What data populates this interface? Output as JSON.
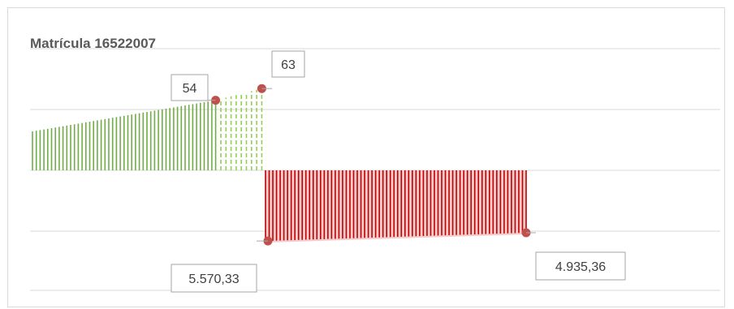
{
  "chart_data": {
    "type": "bar",
    "title": "Matrícula 16522007",
    "series": [
      {
        "kind": "positive-history",
        "color": "#70ad47",
        "style": "solid",
        "values": [
          30,
          30.5,
          31,
          31.5,
          32,
          32.5,
          33,
          33.5,
          34,
          34.5,
          35,
          35.5,
          36,
          36.5,
          37,
          37.5,
          38,
          38.5,
          39,
          39.5,
          40,
          40.5,
          41,
          41.5,
          42,
          42.5,
          43,
          43.5,
          44,
          44.5,
          45,
          45.5,
          46,
          46.5,
          47,
          47.5,
          48,
          48.5,
          49,
          49.5,
          50,
          50.5,
          51,
          51.5,
          52,
          52.5,
          53,
          53.5,
          54
        ]
      },
      {
        "kind": "positive-projection",
        "color": "#92d050",
        "style": "dashed",
        "values": [
          55,
          56,
          57,
          58,
          59,
          60,
          61,
          62,
          63
        ]
      },
      {
        "kind": "negative-balance",
        "color": "#c00000",
        "fill": "#f4cccc",
        "value_start": 5570.33,
        "value_end": 4935.36,
        "bar_count": 72
      }
    ],
    "data_labels": [
      {
        "text": "54",
        "series": "positive-history",
        "point": "last"
      },
      {
        "text": "63",
        "series": "positive-projection",
        "point": "last"
      },
      {
        "text": "5.570,33",
        "series": "negative-balance",
        "point": "first"
      },
      {
        "text": "4.935,36",
        "series": "negative-balance",
        "point": "last"
      }
    ],
    "gridlines": true,
    "upper_scale_max": 100,
    "lower_scale_max": 10000
  },
  "colors": {
    "marker": "#c0504d",
    "grid": "#d9d9d9",
    "label_border": "#a6a6a6"
  }
}
